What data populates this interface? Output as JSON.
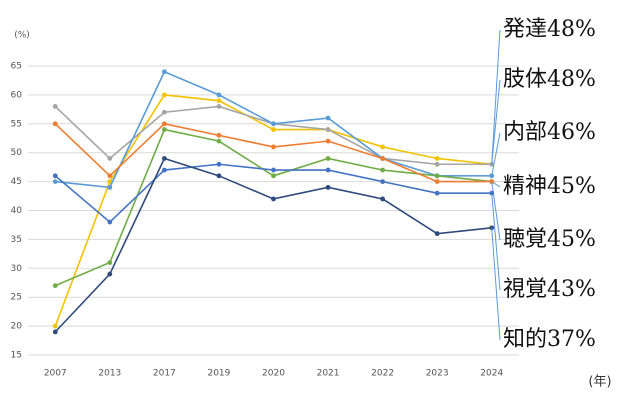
{
  "chart_data": {
    "type": "line",
    "y_unit": "(%)",
    "x_unit": "(年)",
    "categories": [
      "2007",
      "2013",
      "2017",
      "2019",
      "2020",
      "2021",
      "2022",
      "2023",
      "2024"
    ],
    "series": [
      {
        "name": "発達48%",
        "color": "#f2c200",
        "values": [
          20,
          45,
          60,
          59,
          54,
          54,
          51,
          49,
          48
        ]
      },
      {
        "name": "肢体48%",
        "color": "#a5a5a5",
        "values": [
          58,
          49,
          57,
          58,
          55,
          54,
          49,
          48,
          48
        ]
      },
      {
        "name": "内部46%",
        "color": "#5b9bd5",
        "values": [
          45,
          44,
          64,
          60,
          55,
          56,
          49,
          46,
          46
        ]
      },
      {
        "name": "精神45%",
        "color": "#70ad47",
        "values": [
          27,
          31,
          54,
          52,
          46,
          49,
          47,
          46,
          45
        ]
      },
      {
        "name": "聴覚45%",
        "color": "#ed7d31",
        "values": [
          55,
          46,
          55,
          53,
          51,
          52,
          49,
          45,
          45
        ]
      },
      {
        "name": "視覚43%",
        "color": "#4472c4",
        "values": [
          46,
          38,
          47,
          48,
          47,
          47,
          45,
          43,
          43
        ]
      },
      {
        "name": "知的37%",
        "color": "#2f4b7c",
        "values": [
          19,
          29,
          49,
          46,
          42,
          44,
          42,
          36,
          37
        ]
      }
    ],
    "ylim": [
      15,
      65
    ],
    "yticks": [
      15,
      20,
      25,
      30,
      35,
      40,
      45,
      50,
      55,
      60,
      65
    ],
    "grid": true
  }
}
